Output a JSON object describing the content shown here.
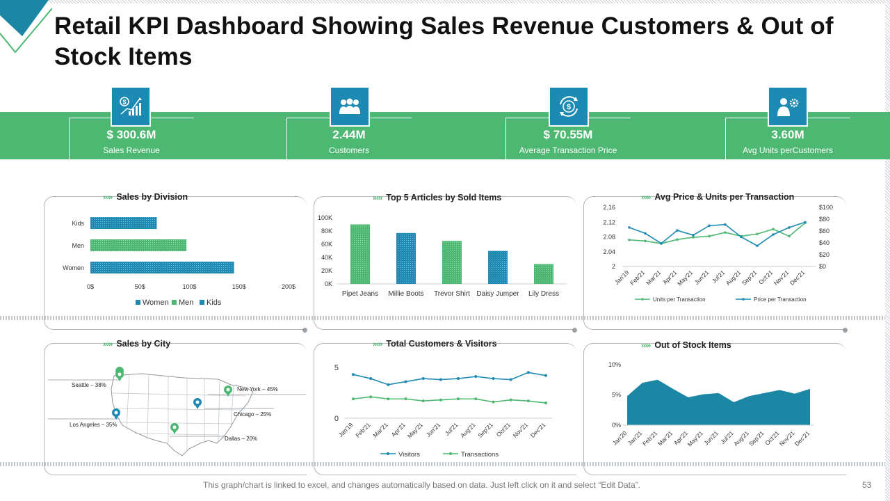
{
  "title": "Retail KPI Dashboard Showing Sales Revenue Customers & Out of Stock Items",
  "kpis": [
    {
      "value": "$ 300.6M",
      "label": "Sales Revenue",
      "icon": "dollar-growth-icon"
    },
    {
      "value": "2.44M",
      "label": "Customers",
      "icon": "people-group-icon"
    },
    {
      "value": "$ 70.55M",
      "label": "Average Transaction Price",
      "icon": "dollar-cycle-icon"
    },
    {
      "value": "3.60M",
      "label": "Avg Units perCustomers",
      "icon": "user-gear-icon"
    }
  ],
  "panels": {
    "division": {
      "title": "Sales by Division"
    },
    "articles": {
      "title": "Top 5 Articles by Sold Items"
    },
    "avgprice": {
      "title": "Avg Price & Units per Transaction"
    },
    "city": {
      "title": "Sales by City"
    },
    "visitors": {
      "title": "Total Customers & Visitors"
    },
    "stock": {
      "title": "Out of Stock Items"
    }
  },
  "city_labels": [
    {
      "text": "Seattle – 38%"
    },
    {
      "text": "New York – 45%"
    },
    {
      "text": "Chicago – 25%"
    },
    {
      "text": "Los Angeles – 35%"
    },
    {
      "text": "Dallas – 20%"
    }
  ],
  "footer": "This graph/chart is linked to excel, and changes automatically based on data. Just left click on it and select “Edit Data”.",
  "page_number": "53",
  "colors": {
    "green": "#4db871",
    "blue": "#1d8ab3",
    "teal": "#1b87a5"
  },
  "chart_data": [
    {
      "id": "division",
      "type": "bar",
      "orientation": "horizontal",
      "categories": [
        "Women",
        "Men",
        "Kids"
      ],
      "values": [
        145,
        97,
        67
      ],
      "xticks": [
        "0$",
        "50$",
        "100$",
        "150$",
        "200$"
      ],
      "xlim": [
        0,
        200
      ],
      "legend": [
        "Women",
        "Men",
        "Kids"
      ],
      "bar_colors": [
        "#1d8ab3",
        "#4db871",
        "#1d8ab3"
      ]
    },
    {
      "id": "articles",
      "type": "bar",
      "categories": [
        "Pipet Jeans",
        "Millie Boots",
        "Trevor Shirt",
        "Daisy Jumper",
        "Lily Dress"
      ],
      "values": [
        90000,
        77000,
        65000,
        50000,
        30000
      ],
      "yticks": [
        "0K",
        "20K",
        "40K",
        "60K",
        "80K",
        "100K"
      ],
      "ylim": [
        0,
        100000
      ],
      "bar_colors": [
        "#4db871",
        "#1d8ab3",
        "#4db871",
        "#1d8ab3",
        "#4db871"
      ]
    },
    {
      "id": "avgprice",
      "type": "line",
      "categories": [
        "Jan'19",
        "Feb'21",
        "Mar'21",
        "Apr'21",
        "May'21",
        "Jun'21",
        "Jul'21",
        "Aug'21",
        "Sep'21",
        "Oct'21",
        "Nov'21",
        "Dec'21"
      ],
      "series": [
        {
          "name": "Units per Transaction",
          "axis": "left",
          "color": "#4db871",
          "values": [
            2.072,
            2.069,
            2.062,
            2.073,
            2.079,
            2.082,
            2.092,
            2.082,
            2.088,
            2.101,
            2.082,
            2.118
          ]
        },
        {
          "name": "Price per Transaction",
          "axis": "right",
          "color": "#1d8ab3",
          "values": [
            66,
            56,
            39,
            61,
            53,
            69,
            71,
            50,
            35,
            54,
            66,
            75
          ]
        }
      ],
      "yticks_left": [
        "2",
        "2.04",
        "2.08",
        "2.12",
        "2.16"
      ],
      "ylim_left": [
        2,
        2.16
      ],
      "yticks_right": [
        "$0",
        "$20",
        "$40",
        "$60",
        "$80",
        "$100"
      ],
      "ylim_right": [
        0,
        100
      ]
    },
    {
      "id": "visitors",
      "type": "line",
      "categories": [
        "Jan'19",
        "Feb'21",
        "Mar'21",
        "Apr'21",
        "May'21",
        "Jun'21",
        "Jul'21",
        "Aug'21",
        "Sep'21",
        "Oct'21",
        "Nov'21",
        "Dec'21"
      ],
      "series": [
        {
          "name": "Visitors",
          "color": "#1d8ab3",
          "values": [
            4.3,
            3.9,
            3.3,
            3.6,
            3.9,
            3.8,
            3.9,
            4.1,
            3.9,
            3.8,
            4.5,
            4.2
          ]
        },
        {
          "name": "Transactions",
          "color": "#4db871",
          "values": [
            1.9,
            2.1,
            1.9,
            1.9,
            1.7,
            1.8,
            1.9,
            1.9,
            1.6,
            1.8,
            1.7,
            1.5
          ]
        }
      ],
      "yticks": [
        "0",
        "5"
      ],
      "ylim": [
        0,
        5
      ]
    },
    {
      "id": "stock",
      "type": "area",
      "categories": [
        "Jan'20",
        "Jan'21",
        "Feb'21",
        "Mar'21",
        "Apr'21",
        "May'21",
        "Jun'21",
        "Jul'21",
        "Aug'21",
        "Sep'21",
        "Oct'21",
        "Nov'21",
        "Dec'21"
      ],
      "values": [
        4.8,
        7.0,
        7.5,
        6.0,
        4.6,
        5.1,
        5.3,
        3.8,
        4.8,
        5.3,
        5.8,
        5.2,
        6.0
      ],
      "yticks": [
        "0%",
        "5%",
        "10%"
      ],
      "ylim": [
        0,
        10
      ],
      "color": "#1b87a5"
    }
  ]
}
